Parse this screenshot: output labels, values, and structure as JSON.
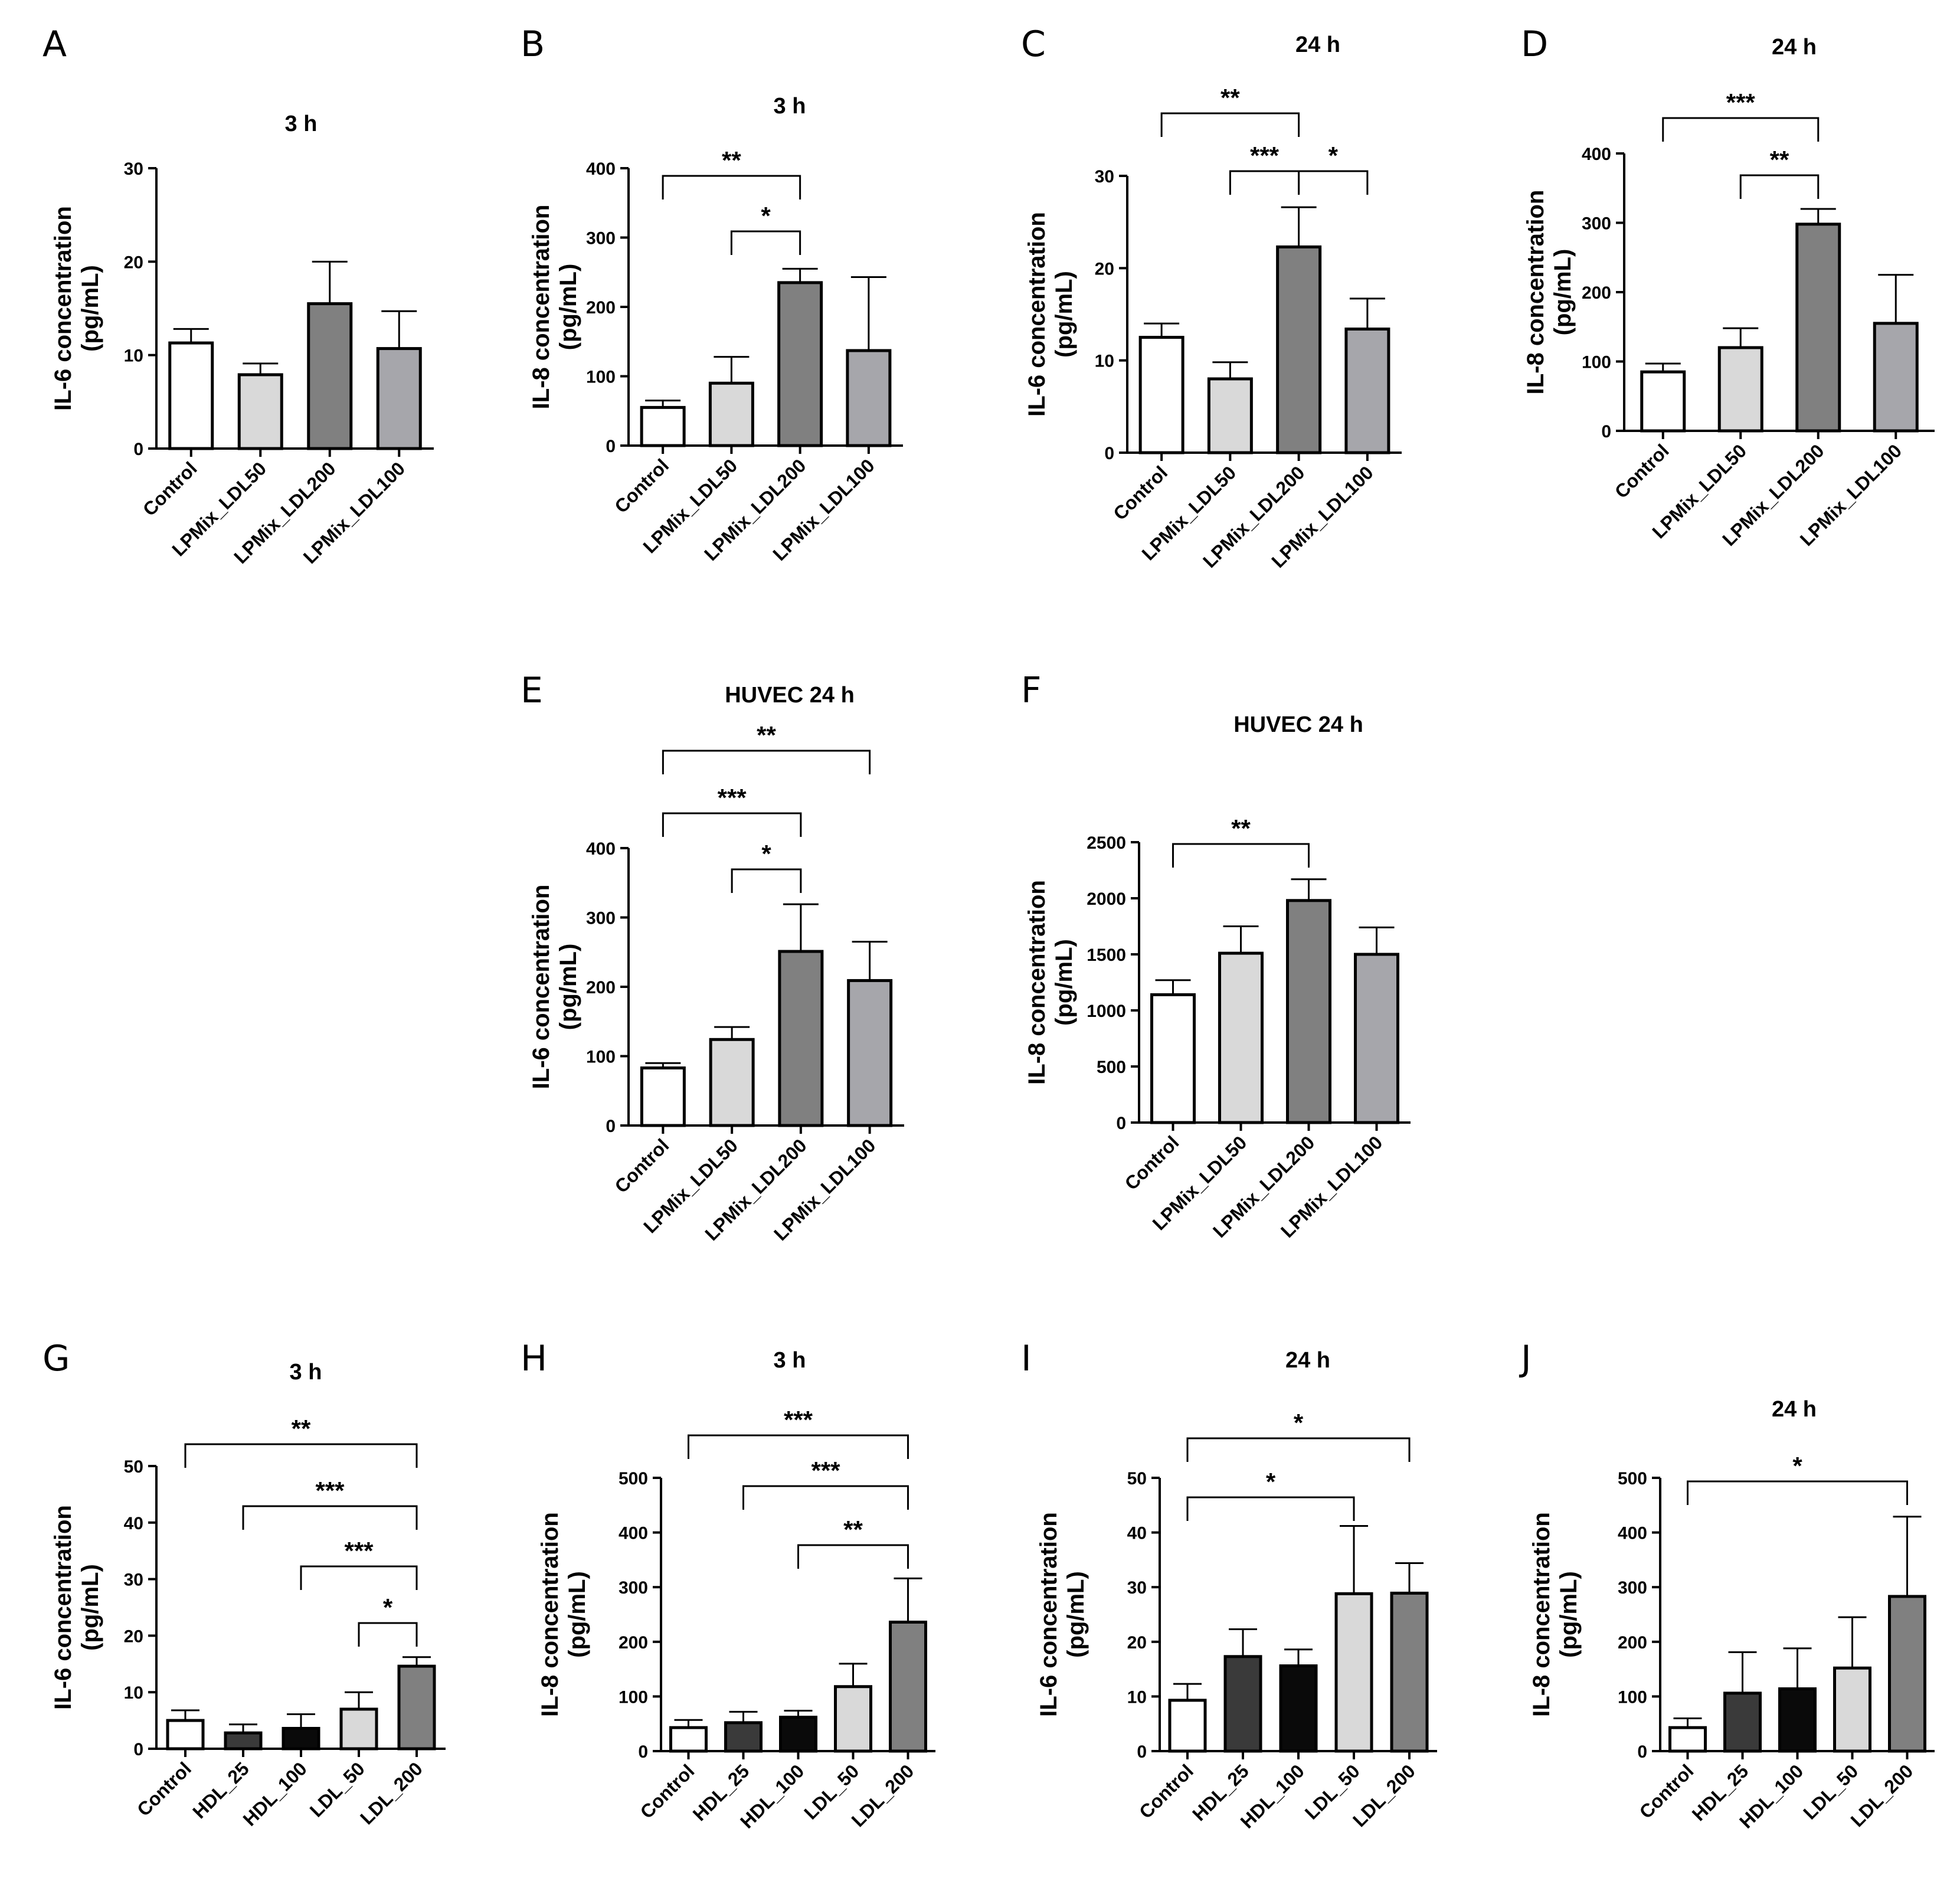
{
  "colors": {
    "Control": "#ffffff",
    "LPMix_LDL50": "#d9d9d9",
    "LPMix_LDL200": "#808080",
    "LPMix_LDL100": "#a6a6ab",
    "HDL_25": "#3a3a3a",
    "HDL_100": "#0a0a0a",
    "LDL_50": "#d9d9d9",
    "LDL_200": "#808080"
  },
  "chart_data": [
    {
      "panel": "A",
      "type": "bar",
      "title": "3 h",
      "ylabel_line1": "IL-6 concentration",
      "ylabel_line2": "(pg/mL)",
      "ylim": [
        0,
        30
      ],
      "yticks": [
        0,
        10,
        20,
        30
      ],
      "categories": [
        "Control",
        "LPMix_LDL50",
        "LPMix_LDL200",
        "LPMix_LDL100"
      ],
      "values": [
        11.3,
        7.9,
        15.5,
        10.7
      ],
      "errors": [
        1.5,
        1.2,
        4.5,
        4.0
      ],
      "significance": []
    },
    {
      "panel": "B",
      "type": "bar",
      "title": "3 h",
      "ylabel_line1": "IL-8 concentration",
      "ylabel_line2": "(pg/mL)",
      "ylim": [
        0,
        400
      ],
      "yticks": [
        0,
        100,
        200,
        300,
        400
      ],
      "categories": [
        "Control",
        "LPMix_LDL50",
        "LPMix_LDL200",
        "LPMix_LDL100"
      ],
      "values": [
        55,
        90,
        235,
        137
      ],
      "errors": [
        10,
        38,
        20,
        106
      ],
      "significance": [
        {
          "from": 0,
          "to": 2,
          "label": "**"
        },
        {
          "from": 1,
          "to": 2,
          "label": "*"
        }
      ]
    },
    {
      "panel": "C",
      "type": "bar",
      "title": "24 h",
      "ylabel_line1": "IL-6 concentration",
      "ylabel_line2": "(pg/mL)",
      "ylim": [
        0,
        30
      ],
      "yticks": [
        0,
        10,
        20,
        30
      ],
      "categories": [
        "Control",
        "LPMix_LDL50",
        "LPMix_LDL200",
        "LPMix_LDL100"
      ],
      "values": [
        12.5,
        8.0,
        22.3,
        13.4
      ],
      "errors": [
        1.5,
        1.8,
        4.3,
        3.3
      ],
      "significance": [
        {
          "from": 0,
          "to": 2,
          "label": "**"
        },
        {
          "from": 1,
          "to": 2,
          "label": "***"
        },
        {
          "from": 2,
          "to": 3,
          "label": "*"
        }
      ]
    },
    {
      "panel": "D",
      "type": "bar",
      "title": "24 h",
      "ylabel_line1": "IL-8 concentration",
      "ylabel_line2": "(pg/mL)",
      "ylim": [
        0,
        400
      ],
      "yticks": [
        0,
        100,
        200,
        300,
        400
      ],
      "categories": [
        "Control",
        "LPMix_LDL50",
        "LPMix_LDL200",
        "LPMix_LDL100"
      ],
      "values": [
        85,
        120,
        298,
        155
      ],
      "errors": [
        12,
        28,
        22,
        70
      ],
      "significance": [
        {
          "from": 0,
          "to": 2,
          "label": "***"
        },
        {
          "from": 1,
          "to": 2,
          "label": "**"
        }
      ]
    },
    {
      "panel": "E",
      "type": "bar",
      "title": "HUVEC 24 h",
      "ylabel_line1": "IL-6 concentration",
      "ylabel_line2": "(pg/mL)",
      "ylim": [
        0,
        400
      ],
      "yticks": [
        0,
        100,
        200,
        300,
        400
      ],
      "categories": [
        "Control",
        "LPMix_LDL50",
        "LPMix_LDL200",
        "LPMix_LDL100"
      ],
      "values": [
        83,
        124,
        251,
        209
      ],
      "errors": [
        7,
        18,
        68,
        56
      ],
      "significance": [
        {
          "from": 0,
          "to": 3,
          "label": "**"
        },
        {
          "from": 0,
          "to": 2,
          "label": "***"
        },
        {
          "from": 1,
          "to": 2,
          "label": "*"
        }
      ]
    },
    {
      "panel": "F",
      "type": "bar",
      "title": "HUVEC 24 h",
      "ylabel_line1": "IL-8 concentration",
      "ylabel_line2": "(pg/mL)",
      "ylim": [
        0,
        2500
      ],
      "yticks": [
        0,
        500,
        1000,
        1500,
        2000,
        2500
      ],
      "categories": [
        "Control",
        "LPMix_LDL50",
        "LPMix_LDL200",
        "LPMix_LDL100"
      ],
      "values": [
        1140,
        1510,
        1980,
        1500
      ],
      "errors": [
        130,
        240,
        190,
        240
      ],
      "significance": [
        {
          "from": 0,
          "to": 2,
          "label": "**"
        }
      ]
    },
    {
      "panel": "G",
      "type": "bar",
      "title": "3 h",
      "ylabel_line1": "IL-6 concentration",
      "ylabel_line2": "(pg/mL)",
      "ylim": [
        0,
        50
      ],
      "yticks": [
        0,
        10,
        20,
        30,
        40,
        50
      ],
      "categories": [
        "Control",
        "HDL_25",
        "HDL_100",
        "LDL_50",
        "LDL_200"
      ],
      "values": [
        5.0,
        2.8,
        3.6,
        7.0,
        14.6
      ],
      "errors": [
        1.8,
        1.5,
        2.5,
        3.0,
        1.6
      ],
      "significance": [
        {
          "from": 0,
          "to": 4,
          "label": "**"
        },
        {
          "from": 1,
          "to": 4,
          "label": "***"
        },
        {
          "from": 2,
          "to": 4,
          "label": "***"
        },
        {
          "from": 3,
          "to": 4,
          "label": "*"
        }
      ]
    },
    {
      "panel": "H",
      "type": "bar",
      "title": "3 h",
      "ylabel_line1": "IL-8 concentration",
      "ylabel_line2": "(pg/mL)",
      "ylim": [
        0,
        500
      ],
      "yticks": [
        0,
        100,
        200,
        300,
        400,
        500
      ],
      "categories": [
        "Control",
        "HDL_25",
        "HDL_100",
        "LDL_50",
        "LDL_200"
      ],
      "values": [
        43,
        52,
        62,
        118,
        236
      ],
      "errors": [
        14,
        20,
        12,
        42,
        80
      ],
      "significance": [
        {
          "from": 0,
          "to": 4,
          "label": "***"
        },
        {
          "from": 1,
          "to": 4,
          "label": "***"
        },
        {
          "from": 2,
          "to": 4,
          "label": "**"
        }
      ]
    },
    {
      "panel": "I",
      "type": "bar",
      "title": "24 h",
      "ylabel_line1": "IL-6 concentration",
      "ylabel_line2": "(pg/mL)",
      "ylim": [
        0,
        50
      ],
      "yticks": [
        0,
        10,
        20,
        30,
        40,
        50
      ],
      "categories": [
        "Control",
        "HDL_25",
        "HDL_100",
        "LDL_50",
        "LDL_200"
      ],
      "values": [
        9.3,
        17.3,
        15.6,
        28.8,
        28.9
      ],
      "errors": [
        3.0,
        5.0,
        3.0,
        12.4,
        5.5
      ],
      "significance": [
        {
          "from": 0,
          "to": 4,
          "label": "*"
        },
        {
          "from": 0,
          "to": 3,
          "label": "*"
        }
      ]
    },
    {
      "panel": "J",
      "type": "bar",
      "title": "24 h",
      "ylabel_line1": "IL-8 concentration",
      "ylabel_line2": "(pg/mL)",
      "ylim": [
        0,
        500
      ],
      "yticks": [
        0,
        100,
        200,
        300,
        400,
        500
      ],
      "categories": [
        "Control",
        "HDL_25",
        "HDL_100",
        "LDL_50",
        "LDL_200"
      ],
      "values": [
        43,
        106,
        114,
        152,
        283
      ],
      "errors": [
        17,
        75,
        74,
        93,
        146
      ],
      "significance": [
        {
          "from": 0,
          "to": 4,
          "label": "*"
        }
      ]
    }
  ]
}
